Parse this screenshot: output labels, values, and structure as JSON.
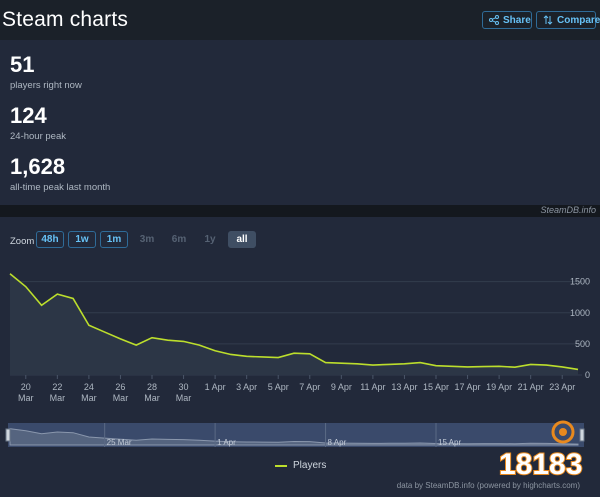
{
  "header": {
    "title": "Steam charts",
    "share_label": "Share",
    "compare_label": "Compare"
  },
  "stats": [
    {
      "value": "51",
      "label": "players right now"
    },
    {
      "value": "124",
      "label": "24-hour peak"
    },
    {
      "value": "1,628",
      "label": "all-time peak last month"
    }
  ],
  "source_label": "SteamDB.info",
  "zoom": {
    "label": "Zoom",
    "options": [
      {
        "label": "48h",
        "state": "active"
      },
      {
        "label": "1w",
        "state": "active"
      },
      {
        "label": "1m",
        "state": "active"
      },
      {
        "label": "3m",
        "state": "disabled"
      },
      {
        "label": "6m",
        "state": "disabled"
      },
      {
        "label": "1y",
        "state": "disabled"
      },
      {
        "label": "all",
        "state": "selected"
      }
    ]
  },
  "navigator_labels": [
    "25 Mar",
    "1 Apr",
    "8 Apr",
    "15 Apr"
  ],
  "legend_label": "Players",
  "credits": "data by SteamDB.info (powered by highcharts.com)",
  "colors": {
    "line": "#bcde2c",
    "accent": "#67c1f5",
    "background": "#22293a"
  },
  "chart_data": {
    "type": "area",
    "title": "",
    "xlabel": "",
    "ylabel": "",
    "ylim": [
      0,
      1800
    ],
    "yticks": [
      0,
      500,
      1000,
      1500
    ],
    "x_tick_labels": [
      [
        "20",
        "Mar"
      ],
      [
        "22",
        "Mar"
      ],
      [
        "24",
        "Mar"
      ],
      [
        "26",
        "Mar"
      ],
      [
        "28",
        "Mar"
      ],
      [
        "30",
        "Mar"
      ],
      [
        "1 Apr"
      ],
      [
        "3 Apr"
      ],
      [
        "5 Apr"
      ],
      [
        "7 Apr"
      ],
      [
        "9 Apr"
      ],
      [
        "11 Apr"
      ],
      [
        "13 Apr"
      ],
      [
        "15 Apr"
      ],
      [
        "17 Apr"
      ],
      [
        "19 Apr"
      ],
      [
        "21 Apr"
      ],
      [
        "23 Apr"
      ]
    ],
    "legend_position": "bottom",
    "series": [
      {
        "name": "Players",
        "x": [
          "Mar 19",
          "Mar 20",
          "Mar 21",
          "Mar 22",
          "Mar 23",
          "Mar 24",
          "Mar 25",
          "Mar 26",
          "Mar 27",
          "Mar 28",
          "Mar 29",
          "Mar 30",
          "Mar 31",
          "Apr 1",
          "Apr 2",
          "Apr 3",
          "Apr 4",
          "Apr 5",
          "Apr 6",
          "Apr 7",
          "Apr 8",
          "Apr 9",
          "Apr 10",
          "Apr 11",
          "Apr 12",
          "Apr 13",
          "Apr 14",
          "Apr 15",
          "Apr 16",
          "Apr 17",
          "Apr 18",
          "Apr 19",
          "Apr 20",
          "Apr 21",
          "Apr 22",
          "Apr 23",
          "Apr 24"
        ],
        "values": [
          1628,
          1420,
          1120,
          1300,
          1230,
          800,
          690,
          580,
          480,
          600,
          560,
          540,
          480,
          390,
          330,
          300,
          290,
          280,
          350,
          340,
          200,
          190,
          180,
          160,
          170,
          180,
          200,
          150,
          140,
          130,
          135,
          140,
          125,
          170,
          160,
          130,
          90
        ]
      }
    ]
  }
}
